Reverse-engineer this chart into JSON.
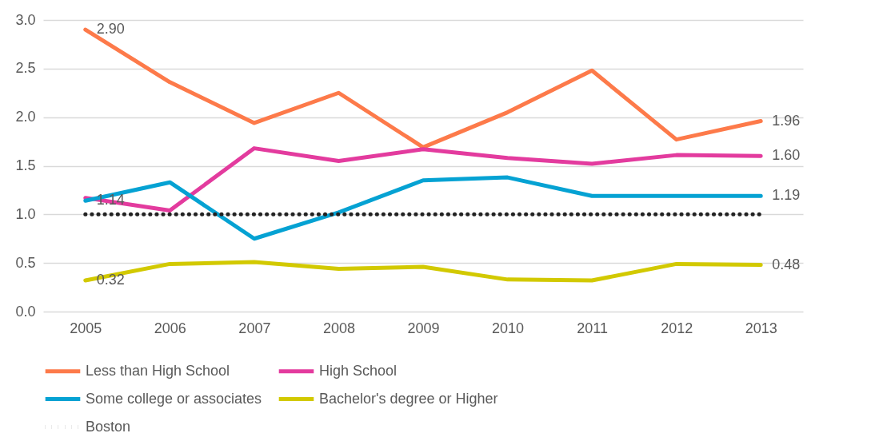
{
  "chart_data": {
    "type": "line",
    "categories": [
      "2005",
      "2006",
      "2007",
      "2008",
      "2009",
      "2010",
      "2011",
      "2012",
      "2013"
    ],
    "ylim": [
      0,
      3
    ],
    "yticks": [
      {
        "value": 0,
        "label": "0.0"
      },
      {
        "value": 0.5,
        "label": "0.5"
      },
      {
        "value": 1,
        "label": "1.0"
      },
      {
        "value": 1.5,
        "label": "1.5"
      },
      {
        "value": 2,
        "label": "2.0"
      },
      {
        "value": 2.5,
        "label": "2.5"
      },
      {
        "value": 3,
        "label": "3.0"
      }
    ],
    "grid": "y",
    "legend": "bottom",
    "marker": "none",
    "series": [
      {
        "name": "Less than High School",
        "color": "#fd7a4a",
        "line_style": "solid",
        "values": [
          2.9,
          2.36,
          1.94,
          2.25,
          1.69,
          2.05,
          2.48,
          1.77,
          1.96
        ],
        "value_labels": [
          "2.90",
          null,
          null,
          null,
          null,
          null,
          null,
          null,
          "1.96"
        ]
      },
      {
        "name": "High School",
        "color": "#e33b9e",
        "line_style": "solid",
        "values": [
          1.17,
          1.04,
          1.68,
          1.55,
          1.67,
          1.58,
          1.52,
          1.61,
          1.6
        ],
        "value_labels": [
          null,
          null,
          null,
          null,
          null,
          null,
          null,
          null,
          "1.60"
        ]
      },
      {
        "name": "Some college or associates",
        "color": "#05a2d3",
        "line_style": "solid",
        "values": [
          1.14,
          1.33,
          0.75,
          1.02,
          1.35,
          1.38,
          1.19,
          1.19,
          1.19
        ],
        "value_labels": [
          "1.14",
          null,
          null,
          null,
          null,
          null,
          null,
          null,
          "1.19"
        ]
      },
      {
        "name": "Bachelor's degree or Higher",
        "color": "#d2c900",
        "line_style": "solid",
        "values": [
          0.32,
          0.49,
          0.51,
          0.44,
          0.46,
          0.33,
          0.32,
          0.49,
          0.48
        ],
        "value_labels": [
          "0.32",
          null,
          null,
          null,
          null,
          null,
          null,
          null,
          "0.48"
        ]
      },
      {
        "name": "Boston",
        "color": "#222222",
        "line_style": "dotted",
        "values": [
          1,
          1,
          1,
          1,
          1,
          1,
          1,
          1,
          1
        ]
      }
    ]
  }
}
